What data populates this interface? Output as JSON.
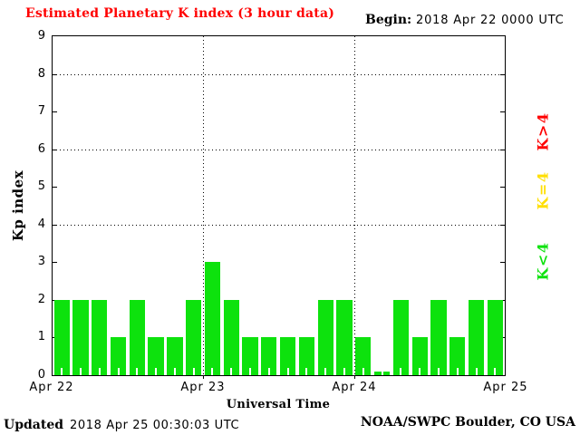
{
  "header": {
    "title": "Estimated Planetary K index (3 hour data)",
    "begin_label": "Begin:",
    "begin_value": "2018 Apr 22 0000 UTC"
  },
  "chart_data": {
    "type": "bar",
    "title": "Estimated Planetary K index (3 hour data)",
    "xlabel": "Universal Time",
    "ylabel": "Kp index",
    "ylim": [
      0,
      9
    ],
    "y_ticks": [
      0,
      1,
      2,
      3,
      4,
      5,
      6,
      7,
      8,
      9
    ],
    "h_gridlines_at": [
      4,
      6,
      8
    ],
    "x_day_labels": [
      "Apr 22",
      "Apr 23",
      "Apr 24",
      "Apr 25"
    ],
    "bars_per_day": 8,
    "values": [
      2,
      2,
      2,
      1,
      2,
      1,
      1,
      2,
      3,
      2,
      1,
      1,
      1,
      1,
      2,
      2,
      1,
      0,
      2,
      1,
      2,
      1,
      2,
      2
    ],
    "bar_color": "#0de20d",
    "legend": [
      {
        "label": "K>4",
        "color": "#ff0000"
      },
      {
        "label": "K=4",
        "color": "#ffdf00"
      },
      {
        "label": "K<4",
        "color": "#0de20d"
      }
    ],
    "grid": "dotted at Kp 4/6/8 and at day boundaries"
  },
  "footer": {
    "updated_label": "Updated",
    "updated_value": "2018 Apr 25 00:30:03 UTC",
    "credit": "NOAA/SWPC Boulder, CO USA"
  }
}
